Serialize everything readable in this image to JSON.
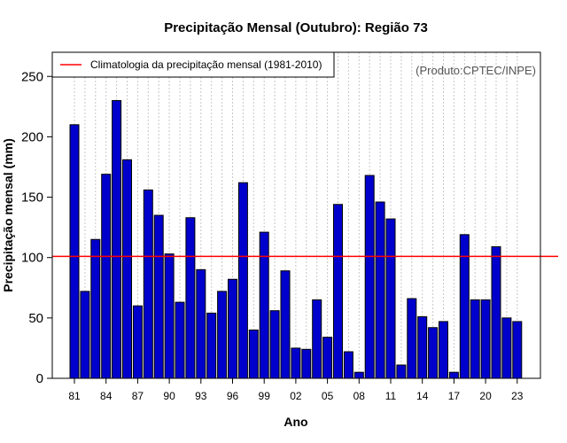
{
  "colors": {
    "bar_fill": "#0000cc",
    "bar_stroke": "#000000",
    "climatology_line": "#ff0000",
    "grid": "#c8c8c8",
    "credit_text": "#555555"
  },
  "legend": {
    "climatology_label": "Climatologia da precipitação mensal (1981-2010)"
  },
  "credit": "(Produto:CPTEC/INPE)",
  "chart_data": {
    "type": "bar",
    "title": "Precipitação Mensal (Outubro): Região 73",
    "xlabel": "Ano",
    "ylabel": "Precipitação mensal (mm)",
    "ylim": [
      0,
      270
    ],
    "yticks": [
      0,
      50,
      100,
      150,
      200,
      250
    ],
    "grid": "vertical dotted",
    "legend_position": "top-left",
    "categories": [
      "1981",
      "1982",
      "1983",
      "1984",
      "1985",
      "1986",
      "1987",
      "1988",
      "1989",
      "1990",
      "1991",
      "1992",
      "1993",
      "1994",
      "1995",
      "1996",
      "1997",
      "1998",
      "1999",
      "2000",
      "2001",
      "2002",
      "2003",
      "2004",
      "2005",
      "2006",
      "2007",
      "2008",
      "2009",
      "2010",
      "2011",
      "2012",
      "2013",
      "2014",
      "2015",
      "2016",
      "2017",
      "2018",
      "2019",
      "2020",
      "2021",
      "2022",
      "2023"
    ],
    "xtick_labels": [
      {
        "index": 0,
        "label": "81"
      },
      {
        "index": 3,
        "label": "84"
      },
      {
        "index": 6,
        "label": "87"
      },
      {
        "index": 9,
        "label": "90"
      },
      {
        "index": 12,
        "label": "93"
      },
      {
        "index": 15,
        "label": "96"
      },
      {
        "index": 18,
        "label": "99"
      },
      {
        "index": 21,
        "label": "02"
      },
      {
        "index": 24,
        "label": "05"
      },
      {
        "index": 27,
        "label": "08"
      },
      {
        "index": 30,
        "label": "11"
      },
      {
        "index": 33,
        "label": "14"
      },
      {
        "index": 36,
        "label": "17"
      },
      {
        "index": 39,
        "label": "20"
      },
      {
        "index": 42,
        "label": "23"
      }
    ],
    "series": [
      {
        "name": "Precipitação mensal",
        "values": [
          210,
          72,
          115,
          169,
          230,
          181,
          60,
          156,
          135,
          103,
          63,
          133,
          90,
          54,
          72,
          82,
          162,
          40,
          121,
          56,
          89,
          25,
          24,
          65,
          34,
          144,
          22,
          5,
          168,
          146,
          132,
          11,
          66,
          51,
          42,
          47,
          5,
          119,
          65,
          65,
          109,
          50,
          47
        ]
      }
    ],
    "reference_lines": [
      {
        "name": "Climatologia da precipitação mensal (1981-2010)",
        "value": 101
      }
    ]
  }
}
